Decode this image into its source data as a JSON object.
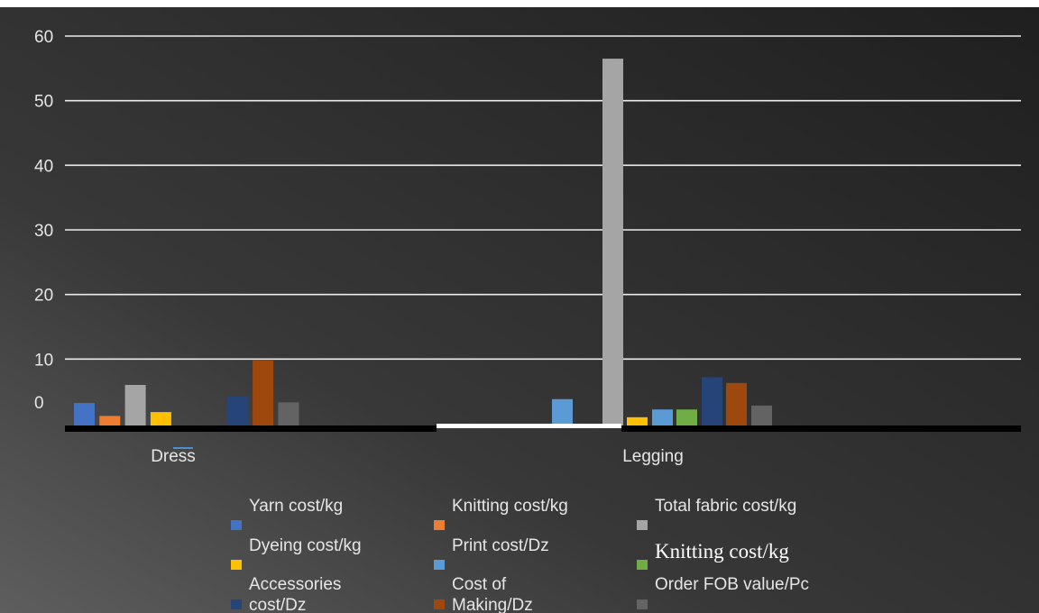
{
  "chart_data": {
    "type": "bar",
    "categories": [
      "Dress",
      "Legging"
    ],
    "ylim": [
      0,
      60
    ],
    "yticks": [
      "0",
      "10",
      "20",
      "30",
      "40",
      "50",
      "60"
    ],
    "grid": true,
    "legend_position": "bottom",
    "series": [
      {
        "name": "Yarn cost/kg",
        "color": "#4472c4",
        "values": [
          3.2,
          0
        ]
      },
      {
        "name": "Knitting cost/kg",
        "color": "#ed7d31",
        "values": [
          1.2,
          0
        ]
      },
      {
        "name": "Total fabric cost/kg",
        "color": "#a5a5a5",
        "values": [
          6.0,
          0
        ]
      },
      {
        "name": "Dyeing cost/kg",
        "color": "#ffc000",
        "values": [
          1.8,
          0
        ]
      },
      {
        "name": "Print cost/Dz",
        "color": "#5b9bd5",
        "values": [
          0,
          3.8
        ]
      },
      {
        "name": "Knitting cost/kg",
        "color": "#a5a5a5",
        "values": [
          0,
          56.5
        ]
      },
      {
        "name": "Accessories cost/Dz",
        "color": "#264478",
        "values": [
          4.2,
          0
        ]
      },
      {
        "name": "Cost of Making/Dz",
        "color": "#9e480e",
        "values": [
          9.8,
          0
        ]
      },
      {
        "name": "Order FOB value/Pc",
        "color": "#636363",
        "values": [
          3.3,
          0
        ]
      },
      {
        "name": "",
        "color": "#ffc000",
        "values": [
          0,
          1.0
        ]
      },
      {
        "name": "",
        "color": "#5b9bd5",
        "values": [
          0,
          2.2
        ]
      },
      {
        "name": "",
        "color": "#70ad47",
        "values": [
          0,
          2.2
        ]
      },
      {
        "name": "",
        "color": "#264478",
        "values": [
          0,
          7.2
        ]
      },
      {
        "name": "",
        "color": "#9e480e",
        "values": [
          0,
          6.3
        ]
      },
      {
        "name": "",
        "color": "#636363",
        "values": [
          0,
          2.8
        ]
      }
    ],
    "legend": [
      {
        "label": "Yarn cost/kg",
        "color": "#4472c4"
      },
      {
        "label": "Knitting cost/kg",
        "color": "#ed7d31"
      },
      {
        "label": "Total fabric cost/kg",
        "color": "#a5a5a5"
      },
      {
        "label": "Dyeing cost/kg",
        "color": "#ffc000"
      },
      {
        "label": "Print cost/Dz",
        "color": "#5b9bd5"
      },
      {
        "label": "Knitting cost/kg",
        "color": "#70ad47"
      },
      {
        "label": "Accessories",
        "label2": "cost/Dz",
        "color": "#264478"
      },
      {
        "label": "Cost of",
        "label2": "Making/Dz",
        "color": "#9e480e"
      },
      {
        "label": "Order FOB value/Pc",
        "color": "#636363"
      }
    ]
  }
}
